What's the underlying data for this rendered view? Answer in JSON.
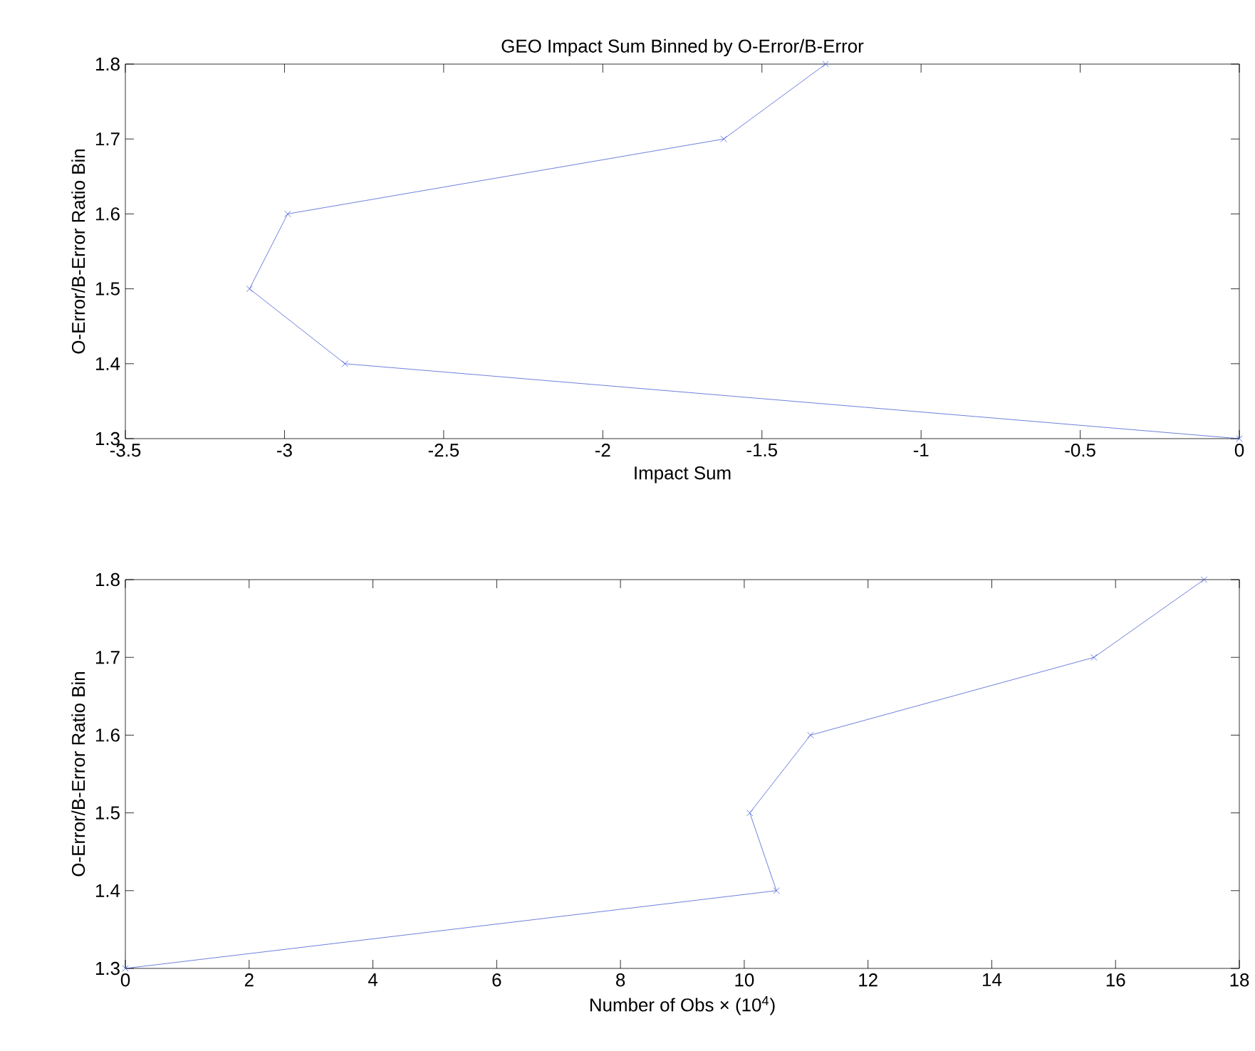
{
  "chart_data": [
    {
      "type": "line",
      "title": "GEO Impact Sum Binned by O-Error/B-Error",
      "xlabel": "Impact Sum",
      "ylabel": "O-Error/B-Error Ratio Bin",
      "series": [
        {
          "color": "#4a5fd0",
          "x": [
            0,
            -2.81,
            -3.11,
            -2.99,
            -1.62,
            -1.3
          ],
          "values": [
            1.3,
            1.4,
            1.5,
            1.6,
            1.7,
            1.8
          ]
        }
      ],
      "xlim": [
        -3.5,
        0
      ],
      "xticks": [
        -3.5,
        -3,
        -2.5,
        -2,
        -1.5,
        -1,
        -0.5,
        0
      ],
      "ylim": [
        1.3,
        1.8
      ],
      "yticks": [
        1.3,
        1.4,
        1.5,
        1.6,
        1.7,
        1.8
      ],
      "marker": "cross",
      "grid": false
    },
    {
      "type": "line",
      "xlabel": "Number of Obs × (10$^{4}$)",
      "ylabel": "O-Error/B-Error Ratio Bin",
      "series": [
        {
          "color": "#4a5fd0",
          "x": [
            0,
            10.52,
            10.09,
            11.07,
            15.65,
            17.43
          ],
          "values": [
            1.3,
            1.4,
            1.5,
            1.6,
            1.7,
            1.8
          ]
        }
      ],
      "xlim": [
        0,
        18
      ],
      "xticks": [
        0,
        2,
        4,
        6,
        8,
        10,
        12,
        14,
        16,
        18
      ],
      "ylim": [
        1.3,
        1.8
      ],
      "yticks": [
        1.3,
        1.4,
        1.5,
        1.6,
        1.7,
        1.8
      ],
      "marker": "cross",
      "grid": false
    }
  ]
}
